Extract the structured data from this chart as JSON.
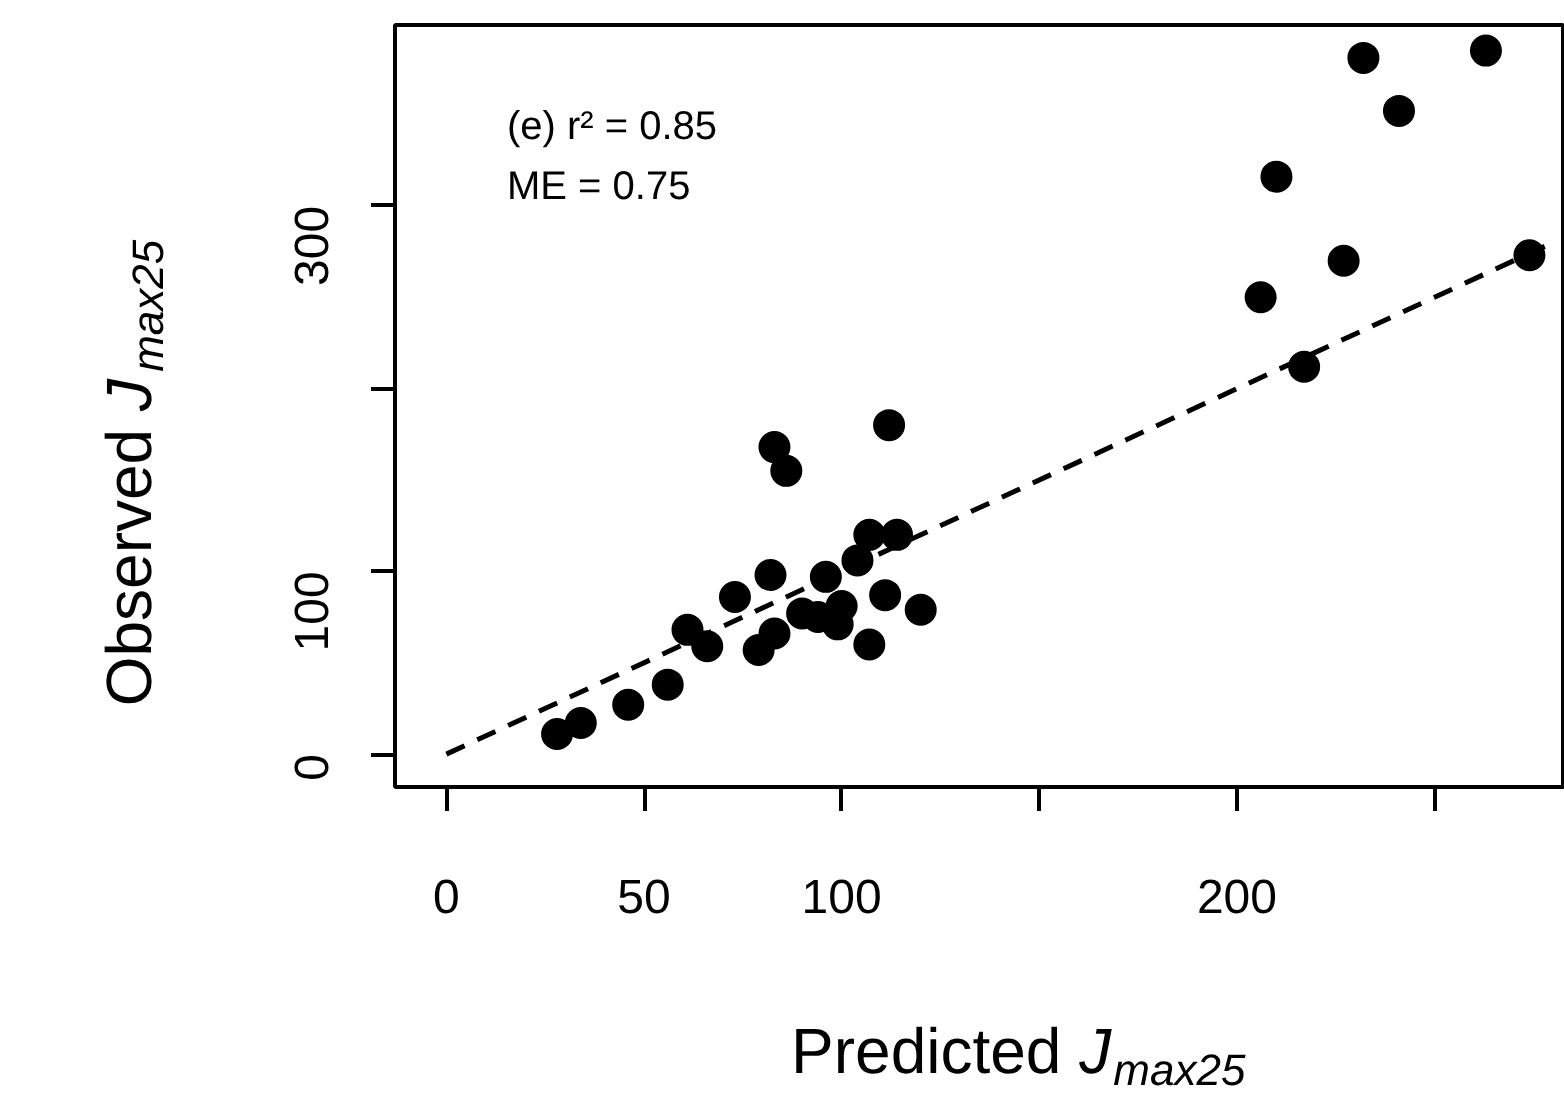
{
  "chart_data": {
    "type": "scatter",
    "xlabel": "Predicted J$_{max25}$",
    "ylabel": "Observed J$_{max25}$",
    "annotations": [
      "(e) r² = 0.85",
      "ME = 0.75"
    ],
    "series": [
      {
        "color": "#000000",
        "marker": "circle",
        "x": [
          28,
          34,
          46,
          56,
          61,
          66,
          73,
          82,
          79,
          83,
          83,
          86,
          96,
          90,
          94,
          99,
          104,
          107,
          114,
          111,
          120,
          107,
          100,
          112,
          232,
          263,
          241,
          210,
          227,
          206,
          217,
          274
        ],
        "values": [
          11,
          17,
          27,
          38,
          68,
          59,
          86,
          98,
          57,
          66,
          168,
          155,
          97,
          77,
          75,
          71,
          106,
          120,
          120,
          87,
          79,
          60,
          81,
          180,
          381,
          385,
          352,
          316,
          270,
          250,
          212,
          273
        ]
      },
      {
        "type": "line",
        "color": "#000000",
        "line_style": "dashed",
        "marker": "none",
        "x": [
          0,
          280
        ],
        "values": [
          0,
          280
        ]
      }
    ],
    "xlim": [
      -13,
      283
    ],
    "ylim": [
      -18,
      399
    ],
    "xticks": [
      0,
      50,
      100,
      {
        "value": 150,
        "label": null
      },
      200,
      {
        "value": 250,
        "label": null
      }
    ],
    "yticks": [
      0,
      100,
      {
        "value": 200,
        "label": null
      },
      300
    ],
    "grid": false
  }
}
